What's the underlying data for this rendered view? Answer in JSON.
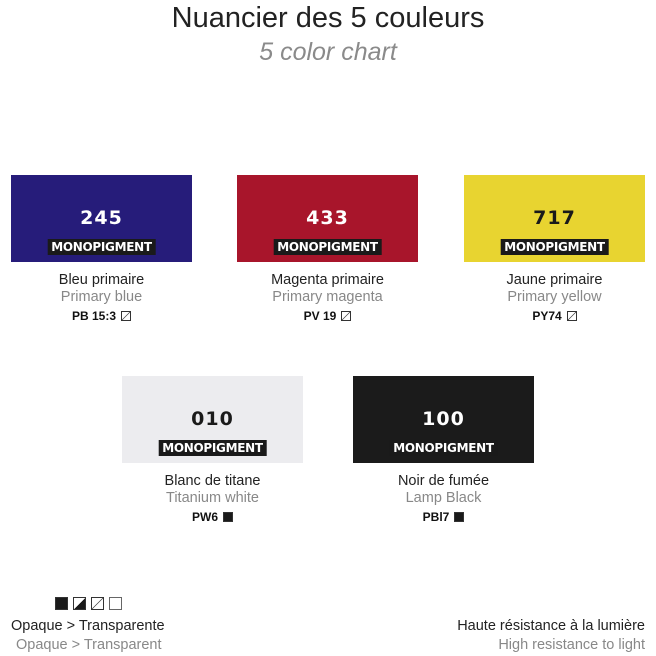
{
  "title": "Nuancier des 5 couleurs",
  "subtitle": "5 color chart",
  "badge": "MONOPIGMENT",
  "colors": [
    {
      "number": "245",
      "name_fr": "Bleu primaire",
      "name_en": "Primary blue",
      "pigment": "PB 15:3",
      "opacity_icon": "semi-transparent",
      "swatch": "#261c7a",
      "text_color": "#ffffff"
    },
    {
      "number": "433",
      "name_fr": "Magenta primaire",
      "name_en": "Primary magenta",
      "pigment": "PV 19",
      "opacity_icon": "semi-transparent",
      "swatch": "#a8152b",
      "text_color": "#ffffff"
    },
    {
      "number": "717",
      "name_fr": "Jaune primaire",
      "name_en": "Primary yellow",
      "pigment": "PY74",
      "opacity_icon": "semi-transparent",
      "swatch": "#e8d430",
      "text_color": "#1a1a1a"
    },
    {
      "number": "010",
      "name_fr": "Blanc de titane",
      "name_en": "Titanium white",
      "pigment": "PW6",
      "opacity_icon": "opaque",
      "swatch": "#ececef",
      "text_color": "#1a1a1a"
    },
    {
      "number": "100",
      "name_fr": "Noir de fumée",
      "name_en": "Lamp Black",
      "pigment": "PBl7",
      "opacity_icon": "opaque",
      "swatch": "#1b1b1b",
      "text_color": "#ffffff"
    }
  ],
  "legend": {
    "icons": [
      "opaque",
      "semi-opaque",
      "semi-transparent",
      "transparent"
    ],
    "opacity_fr": "Opaque > Transparente",
    "opacity_en": "Opaque > Transparent",
    "light_fr": "Haute résistance à la lumière",
    "light_en": "High resistance to light"
  }
}
